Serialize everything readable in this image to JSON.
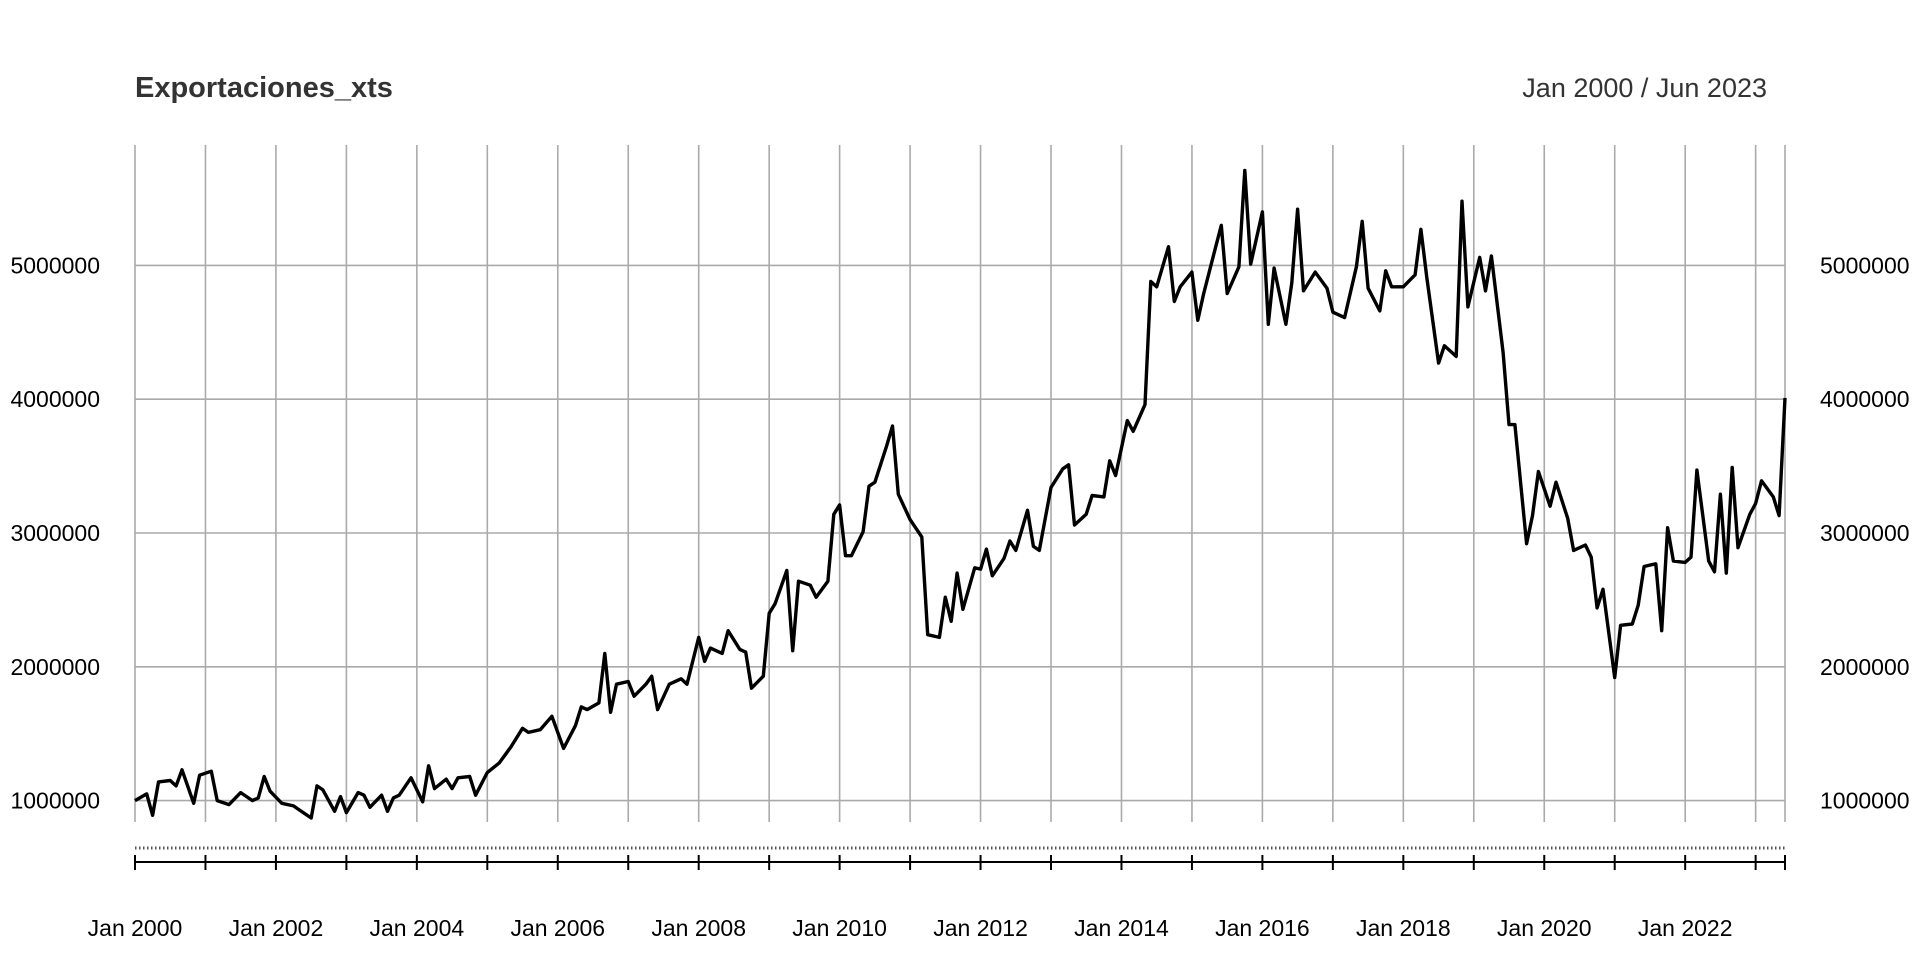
{
  "chart_data": {
    "type": "line",
    "title": "Exportaciones_xts",
    "subtitle": "Jan 2000 / Jun 2023",
    "xlabel": "",
    "ylabel": "",
    "grid": true,
    "legend": "none",
    "line_color": "#000000",
    "grid_color": "#aaaaaa",
    "x_range": [
      "2000-01",
      "2023-06"
    ],
    "ylim": [
      840000,
      5900000
    ],
    "y_ticks": [
      {
        "value": 1000000,
        "label": "1000000"
      },
      {
        "value": 2000000,
        "label": "2000000"
      },
      {
        "value": 3000000,
        "label": "3000000"
      },
      {
        "value": 4000000,
        "label": "4000000"
      },
      {
        "value": 5000000,
        "label": "5000000"
      }
    ],
    "x_tick_labels": [
      {
        "date": "2000-01",
        "label": "Jan 2000"
      },
      {
        "date": "2002-01",
        "label": "Jan 2002"
      },
      {
        "date": "2004-01",
        "label": "Jan 2004"
      },
      {
        "date": "2006-01",
        "label": "Jan 2006"
      },
      {
        "date": "2008-01",
        "label": "Jan 2008"
      },
      {
        "date": "2010-01",
        "label": "Jan 2010"
      },
      {
        "date": "2012-01",
        "label": "Jan 2012"
      },
      {
        "date": "2014-01",
        "label": "Jan 2014"
      },
      {
        "date": "2016-01",
        "label": "Jan 2016"
      },
      {
        "date": "2018-01",
        "label": "Jan 2018"
      },
      {
        "date": "2020-01",
        "label": "Jan 2020"
      },
      {
        "date": "2022-01",
        "label": "Jan 2022"
      }
    ],
    "x_gridlines": [
      "2000-01",
      "2001-01",
      "2002-01",
      "2003-01",
      "2004-01",
      "2005-01",
      "2006-01",
      "2007-01",
      "2008-01",
      "2009-01",
      "2010-01",
      "2011-01",
      "2012-01",
      "2013-01",
      "2014-01",
      "2015-01",
      "2016-01",
      "2017-01",
      "2018-01",
      "2019-01",
      "2020-01",
      "2021-01",
      "2022-01",
      "2023-01",
      "2023-06"
    ],
    "series": [
      {
        "name": "",
        "points": [
          [
            "2000-01",
            1000000
          ],
          [
            "2000-03",
            1050000
          ],
          [
            "2000-04",
            890000
          ],
          [
            "2000-05",
            1140000
          ],
          [
            "2000-07",
            1150000
          ],
          [
            "2000-08",
            1110000
          ],
          [
            "2000-09",
            1230000
          ],
          [
            "2000-11",
            980000
          ],
          [
            "2000-12",
            1190000
          ],
          [
            "2001-02",
            1220000
          ],
          [
            "2001-03",
            1000000
          ],
          [
            "2001-05",
            970000
          ],
          [
            "2001-07",
            1060000
          ],
          [
            "2001-09",
            1000000
          ],
          [
            "2001-10",
            1020000
          ],
          [
            "2001-11",
            1180000
          ],
          [
            "2001-12",
            1070000
          ],
          [
            "2002-02",
            980000
          ],
          [
            "2002-04",
            960000
          ],
          [
            "2002-05",
            930000
          ],
          [
            "2002-07",
            870000
          ],
          [
            "2002-08",
            1110000
          ],
          [
            "2002-09",
            1080000
          ],
          [
            "2002-11",
            920000
          ],
          [
            "2002-12",
            1030000
          ],
          [
            "2003-01",
            910000
          ],
          [
            "2003-03",
            1060000
          ],
          [
            "2003-04",
            1040000
          ],
          [
            "2003-05",
            950000
          ],
          [
            "2003-07",
            1040000
          ],
          [
            "2003-08",
            920000
          ],
          [
            "2003-09",
            1020000
          ],
          [
            "2003-10",
            1040000
          ],
          [
            "2003-12",
            1170000
          ],
          [
            "2004-02",
            990000
          ],
          [
            "2004-03",
            1260000
          ],
          [
            "2004-04",
            1090000
          ],
          [
            "2004-06",
            1160000
          ],
          [
            "2004-07",
            1090000
          ],
          [
            "2004-08",
            1170000
          ],
          [
            "2004-10",
            1180000
          ],
          [
            "2004-11",
            1040000
          ],
          [
            "2005-01",
            1210000
          ],
          [
            "2005-03",
            1280000
          ],
          [
            "2005-05",
            1400000
          ],
          [
            "2005-07",
            1540000
          ],
          [
            "2005-08",
            1510000
          ],
          [
            "2005-10",
            1530000
          ],
          [
            "2005-12",
            1630000
          ],
          [
            "2006-02",
            1390000
          ],
          [
            "2006-04",
            1560000
          ],
          [
            "2006-05",
            1700000
          ],
          [
            "2006-06",
            1680000
          ],
          [
            "2006-08",
            1730000
          ],
          [
            "2006-09",
            2100000
          ],
          [
            "2006-10",
            1660000
          ],
          [
            "2006-11",
            1870000
          ],
          [
            "2007-01",
            1890000
          ],
          [
            "2007-02",
            1780000
          ],
          [
            "2007-04",
            1870000
          ],
          [
            "2007-05",
            1930000
          ],
          [
            "2007-06",
            1680000
          ],
          [
            "2007-08",
            1870000
          ],
          [
            "2007-10",
            1910000
          ],
          [
            "2007-11",
            1870000
          ],
          [
            "2008-01",
            2220000
          ],
          [
            "2008-02",
            2040000
          ],
          [
            "2008-03",
            2140000
          ],
          [
            "2008-05",
            2100000
          ],
          [
            "2008-06",
            2270000
          ],
          [
            "2008-08",
            2130000
          ],
          [
            "2008-09",
            2110000
          ],
          [
            "2008-10",
            1840000
          ],
          [
            "2008-12",
            1930000
          ],
          [
            "2009-01",
            2400000
          ],
          [
            "2009-02",
            2470000
          ],
          [
            "2009-04",
            2720000
          ],
          [
            "2009-05",
            2120000
          ],
          [
            "2009-06",
            2640000
          ],
          [
            "2009-08",
            2610000
          ],
          [
            "2009-09",
            2520000
          ],
          [
            "2009-11",
            2640000
          ],
          [
            "2009-12",
            3140000
          ],
          [
            "2010-01",
            3210000
          ],
          [
            "2010-02",
            2830000
          ],
          [
            "2010-03",
            2830000
          ],
          [
            "2010-05",
            3010000
          ],
          [
            "2010-06",
            3350000
          ],
          [
            "2010-07",
            3380000
          ],
          [
            "2010-09",
            3650000
          ],
          [
            "2010-10",
            3800000
          ],
          [
            "2010-11",
            3290000
          ],
          [
            "2011-01",
            3100000
          ],
          [
            "2011-03",
            2970000
          ],
          [
            "2011-04",
            2240000
          ],
          [
            "2011-06",
            2220000
          ],
          [
            "2011-07",
            2520000
          ],
          [
            "2011-08",
            2340000
          ],
          [
            "2011-09",
            2700000
          ],
          [
            "2011-10",
            2430000
          ],
          [
            "2011-12",
            2740000
          ],
          [
            "2012-01",
            2730000
          ],
          [
            "2012-02",
            2880000
          ],
          [
            "2012-03",
            2680000
          ],
          [
            "2012-05",
            2810000
          ],
          [
            "2012-06",
            2940000
          ],
          [
            "2012-07",
            2870000
          ],
          [
            "2012-09",
            3170000
          ],
          [
            "2012-10",
            2900000
          ],
          [
            "2012-11",
            2870000
          ],
          [
            "2013-01",
            3340000
          ],
          [
            "2013-03",
            3480000
          ],
          [
            "2013-04",
            3510000
          ],
          [
            "2013-05",
            3060000
          ],
          [
            "2013-07",
            3140000
          ],
          [
            "2013-08",
            3280000
          ],
          [
            "2013-10",
            3270000
          ],
          [
            "2013-11",
            3540000
          ],
          [
            "2013-12",
            3430000
          ],
          [
            "2014-02",
            3840000
          ],
          [
            "2014-03",
            3760000
          ],
          [
            "2014-05",
            3960000
          ],
          [
            "2014-06",
            4880000
          ],
          [
            "2014-07",
            4840000
          ],
          [
            "2014-09",
            5140000
          ],
          [
            "2014-10",
            4730000
          ],
          [
            "2014-11",
            4840000
          ],
          [
            "2015-01",
            4950000
          ],
          [
            "2015-02",
            4590000
          ],
          [
            "2015-03",
            4790000
          ],
          [
            "2015-05",
            5130000
          ],
          [
            "2015-06",
            5300000
          ],
          [
            "2015-07",
            4790000
          ],
          [
            "2015-09",
            4990000
          ],
          [
            "2015-10",
            5710000
          ],
          [
            "2015-11",
            5010000
          ],
          [
            "2016-01",
            5400000
          ],
          [
            "2016-02",
            4560000
          ],
          [
            "2016-03",
            4980000
          ],
          [
            "2016-05",
            4560000
          ],
          [
            "2016-06",
            4870000
          ],
          [
            "2016-07",
            5420000
          ],
          [
            "2016-08",
            4810000
          ],
          [
            "2016-10",
            4950000
          ],
          [
            "2016-12",
            4830000
          ],
          [
            "2017-01",
            4650000
          ],
          [
            "2017-03",
            4610000
          ],
          [
            "2017-05",
            4990000
          ],
          [
            "2017-06",
            5330000
          ],
          [
            "2017-07",
            4830000
          ],
          [
            "2017-09",
            4660000
          ],
          [
            "2017-10",
            4960000
          ],
          [
            "2017-11",
            4840000
          ],
          [
            "2018-01",
            4840000
          ],
          [
            "2018-03",
            4930000
          ],
          [
            "2018-04",
            5270000
          ],
          [
            "2018-05",
            4910000
          ],
          [
            "2018-07",
            4270000
          ],
          [
            "2018-08",
            4400000
          ],
          [
            "2018-10",
            4320000
          ],
          [
            "2018-11",
            5480000
          ],
          [
            "2018-12",
            4690000
          ],
          [
            "2019-02",
            5060000
          ],
          [
            "2019-03",
            4810000
          ],
          [
            "2019-04",
            5070000
          ],
          [
            "2019-06",
            4350000
          ],
          [
            "2019-07",
            3810000
          ],
          [
            "2019-08",
            3810000
          ],
          [
            "2019-10",
            2920000
          ],
          [
            "2019-11",
            3130000
          ],
          [
            "2019-12",
            3460000
          ],
          [
            "2020-02",
            3200000
          ],
          [
            "2020-03",
            3380000
          ],
          [
            "2020-05",
            3110000
          ],
          [
            "2020-06",
            2870000
          ],
          [
            "2020-08",
            2910000
          ],
          [
            "2020-09",
            2820000
          ],
          [
            "2020-10",
            2440000
          ],
          [
            "2020-11",
            2580000
          ],
          [
            "2021-01",
            1920000
          ],
          [
            "2021-02",
            2310000
          ],
          [
            "2021-04",
            2320000
          ],
          [
            "2021-05",
            2460000
          ],
          [
            "2021-06",
            2750000
          ],
          [
            "2021-08",
            2770000
          ],
          [
            "2021-09",
            2270000
          ],
          [
            "2021-10",
            3040000
          ],
          [
            "2021-11",
            2790000
          ],
          [
            "2022-01",
            2780000
          ],
          [
            "2022-02",
            2820000
          ],
          [
            "2022-03",
            3470000
          ],
          [
            "2022-05",
            2790000
          ],
          [
            "2022-06",
            2710000
          ],
          [
            "2022-07",
            3290000
          ],
          [
            "2022-08",
            2700000
          ],
          [
            "2022-09",
            3490000
          ],
          [
            "2022-10",
            2890000
          ],
          [
            "2022-12",
            3140000
          ],
          [
            "2023-01",
            3220000
          ],
          [
            "2023-02",
            3390000
          ],
          [
            "2023-04",
            3270000
          ],
          [
            "2023-05",
            3130000
          ],
          [
            "2023-06",
            4010000
          ]
        ]
      }
    ]
  }
}
